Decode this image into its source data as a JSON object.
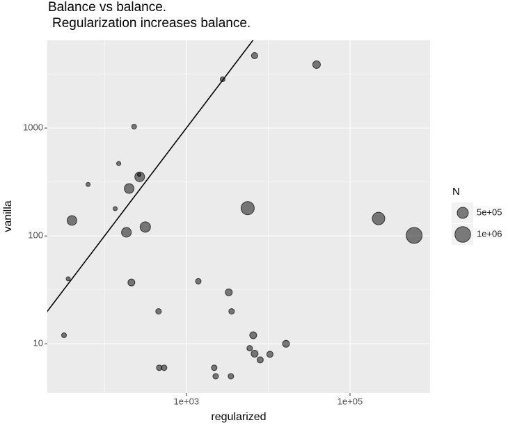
{
  "chart_data": {
    "type": "scatter",
    "title": "Balance vs balance.",
    "subtitle": "Regularization increases balance.",
    "x_label": "regularized",
    "y_label": "vanilla",
    "x_scale": "log",
    "y_scale": "log",
    "xlim": [
      20,
      950000
    ],
    "ylim": [
      3.5,
      6500
    ],
    "xticks": [
      {
        "value": 1000,
        "label": "1e+03"
      },
      {
        "value": 100000,
        "label": "1e+05"
      }
    ],
    "yticks": [
      10,
      100,
      1000
    ],
    "x_minor_grid": [
      100,
      10000
    ],
    "y_minor_grid": [
      31.62,
      316.2,
      3162
    ],
    "grid": true,
    "reference_line": "identity",
    "color": "#000000",
    "opacity": 0.5,
    "size_legend": {
      "title": "N",
      "position": "right",
      "breaks": [
        {
          "value": 500000,
          "label": "5e+05"
        },
        {
          "value": 1000000,
          "label": "1e+06"
        }
      ]
    },
    "x": [
      6820,
      39000,
      2770,
      230,
      149,
      269,
      265,
      63,
      200,
      135,
      5610,
      40,
      315,
      185,
      223000,
      607000,
      36,
      213,
      1400,
      3300,
      457,
      3570,
      32,
      6560,
      16500,
      5940,
      6820,
      10500,
      7980,
      466,
      535,
      2190,
      2280,
      3500
    ],
    "values": [
      4690,
      3870,
      2830,
      1030,
      469,
      353,
      370,
      300,
      275,
      179,
      181,
      139,
      121,
      108,
      145,
      101,
      40,
      37,
      38,
      30,
      20,
      20,
      12,
      12,
      10,
      9.1,
      8.1,
      8,
      7.1,
      6,
      6,
      6,
      5,
      5
    ],
    "sizes": [
      158000,
      237000,
      96000,
      96000,
      70000,
      384000,
      50000,
      70000,
      384000,
      70000,
      707000,
      384000,
      440000,
      384000,
      634000,
      1036000,
      70000,
      196000,
      125000,
      196000,
      125000,
      125000,
      96000,
      196000,
      196000,
      125000,
      196000,
      158000,
      158000,
      125000,
      125000,
      125000,
      125000,
      125000
    ]
  }
}
